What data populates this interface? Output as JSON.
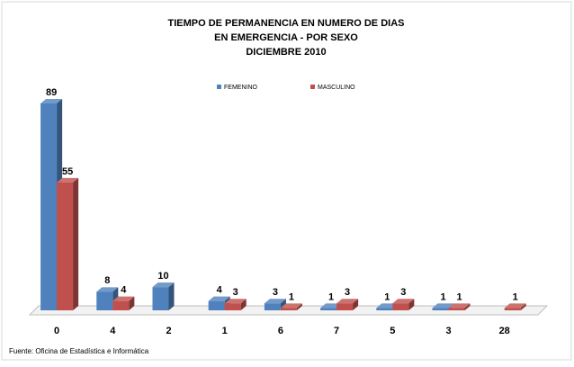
{
  "chart_data": {
    "type": "bar3d",
    "title": [
      "TIEMPO DE PERMANENCIA EN NUMERO DE DIAS",
      "EN EMERGENCIA - POR SEXO",
      "DICIEMBRE 2010"
    ],
    "categories": [
      "0",
      "4",
      "2",
      "1",
      "6",
      "7",
      "5",
      "3",
      "28"
    ],
    "series": [
      {
        "name": "FEMENINO",
        "color": "#4f81bd",
        "values": [
          89,
          8,
          10,
          4,
          3,
          1,
          1,
          1,
          null
        ]
      },
      {
        "name": "MASCULINO",
        "color": "#c0504d",
        "values": [
          55,
          4,
          null,
          3,
          1,
          3,
          3,
          1,
          1
        ]
      }
    ],
    "legend": "top",
    "footnote": "Fuente: Oficina de Estadística e Informática"
  }
}
